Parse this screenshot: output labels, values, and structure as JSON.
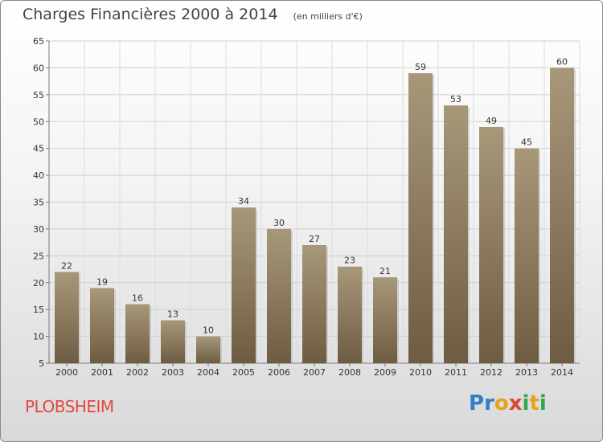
{
  "header": {
    "title": "Charges Financières 2000 à 2014",
    "unit": "(en milliers d'€)"
  },
  "footer": {
    "commune": "PLOBSHEIM",
    "logo": {
      "letters": [
        "P",
        "r",
        "o",
        "x",
        "i",
        "t",
        "i"
      ],
      "colors": [
        "#2f7fc8",
        "#2f7fc8",
        "#e8a11a",
        "#d64a2f",
        "#2fa84f",
        "#e8a11a",
        "#2fa84f"
      ]
    }
  },
  "chart_data": {
    "type": "bar",
    "title": "Charges Financières 2000 à 2014",
    "subtitle": "(en milliers d'€)",
    "categories": [
      "2000",
      "2001",
      "2002",
      "2003",
      "2004",
      "2005",
      "2006",
      "2007",
      "2008",
      "2009",
      "2010",
      "2011",
      "2012",
      "2013",
      "2014"
    ],
    "values": [
      22,
      19,
      16,
      13,
      10,
      34,
      30,
      27,
      23,
      21,
      59,
      53,
      49,
      45,
      60
    ],
    "ylim": [
      5,
      65
    ],
    "yticks": [
      5,
      10,
      15,
      20,
      25,
      30,
      35,
      40,
      45,
      50,
      55,
      60,
      65
    ],
    "grid": true,
    "bar_color": "#8c7a5e"
  }
}
